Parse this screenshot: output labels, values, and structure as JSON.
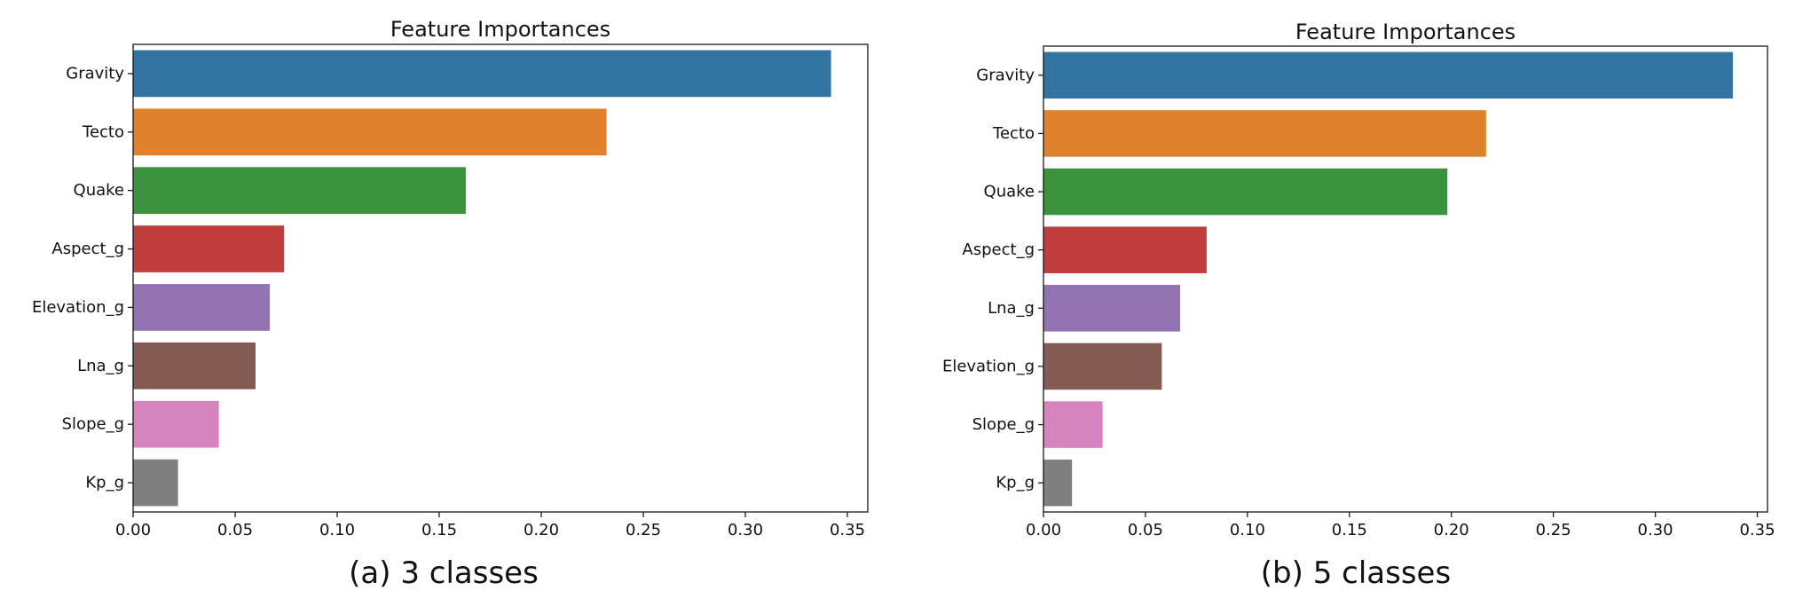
{
  "chart_data": [
    {
      "type": "bar",
      "orientation": "horizontal",
      "title": "Feature Importances",
      "caption": "(a) 3 classes",
      "categories": [
        "Gravity",
        "Tecto",
        "Quake",
        "Aspect_g",
        "Elevation_g",
        "Lna_g",
        "Slope_g",
        "Kp_g"
      ],
      "values": [
        0.342,
        0.232,
        0.163,
        0.074,
        0.067,
        0.06,
        0.042,
        0.022
      ],
      "colors": [
        "#3274a1",
        "#e1812c",
        "#3a923a",
        "#c03d3e",
        "#9372b2",
        "#845b53",
        "#d684bd",
        "#7f7f7f"
      ],
      "xlim": [
        0,
        0.36
      ],
      "xticks": [
        0,
        0.05,
        0.1,
        0.15,
        0.2,
        0.25,
        0.3,
        0.35
      ],
      "xtick_labels": [
        "0.00",
        "0.05",
        "0.10",
        "0.15",
        "0.20",
        "0.25",
        "0.30",
        "0.35"
      ],
      "xlabel": "",
      "ylabel": "",
      "grid": false
    },
    {
      "type": "bar",
      "orientation": "horizontal",
      "title": "Feature Importances",
      "caption": "(b) 5 classes",
      "categories": [
        "Gravity",
        "Tecto",
        "Quake",
        "Aspect_g",
        "Lna_g",
        "Elevation_g",
        "Slope_g",
        "Kp_g"
      ],
      "values": [
        0.338,
        0.217,
        0.198,
        0.08,
        0.067,
        0.058,
        0.029,
        0.014
      ],
      "colors": [
        "#3274a1",
        "#e1812c",
        "#3a923a",
        "#c03d3e",
        "#9372b2",
        "#845b53",
        "#d684bd",
        "#7f7f7f"
      ],
      "xlim": [
        0,
        0.355
      ],
      "xticks": [
        0,
        0.05,
        0.1,
        0.15,
        0.2,
        0.25,
        0.3,
        0.35
      ],
      "xtick_labels": [
        "0.00",
        "0.05",
        "0.10",
        "0.15",
        "0.20",
        "0.25",
        "0.30",
        "0.35"
      ],
      "xlabel": "",
      "ylabel": "",
      "grid": false
    }
  ]
}
